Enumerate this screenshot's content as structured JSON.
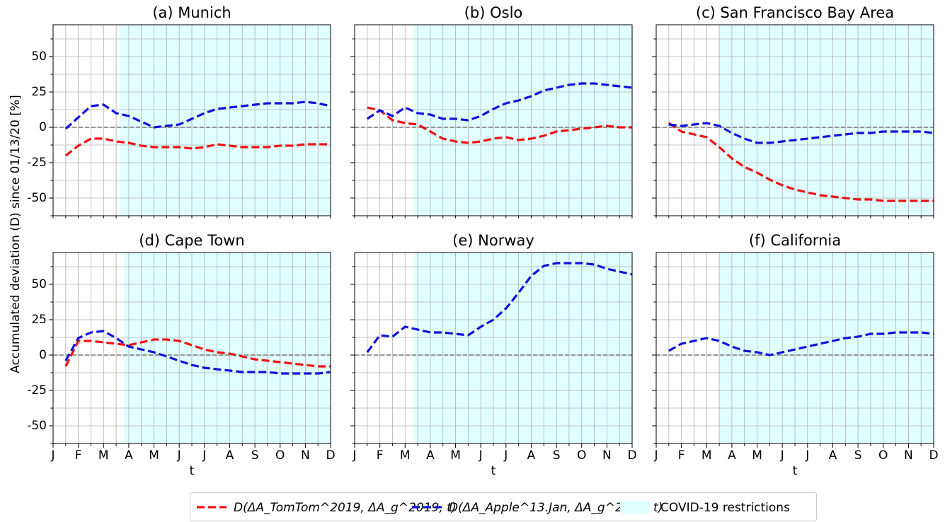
{
  "chart_data": [
    {
      "type": "line",
      "title": "(a) Munich",
      "ylabel": "Accumulated deviation (D) since 01/13/20 [%]",
      "restrictions_label": "COVID-19 restrictions",
      "shade_color": "#e0ffff",
      "shaded_from": 5.3,
      "hline": 0,
      "categories": [
        null,
        null,
        null,
        null,
        null,
        null,
        null,
        null,
        null,
        null,
        null,
        null,
        null,
        null,
        null,
        null,
        null,
        null,
        null,
        null,
        null,
        null,
        null
      ],
      "ylim": [
        -62.5,
        72.5
      ],
      "yticks": [
        -50,
        -25,
        0,
        25,
        50
      ],
      "yticks_minor": [
        -62.5,
        -37.5,
        -12.5,
        12.5,
        37.5,
        62.5
      ],
      "grid": true,
      "series": [
        {
          "name": "D(ΔA_TomTom^2019, ΔA_g^2019, t)",
          "color": "#ee1111",
          "values": [
            null,
            -20,
            -13,
            -8,
            -8,
            -10,
            -11,
            -13,
            -14,
            -14,
            -14,
            -15,
            -14,
            -12,
            -13,
            -14,
            -14,
            -14,
            -13,
            -13,
            -12,
            -12,
            -12
          ]
        },
        {
          "name": "D(ΔA_Apple^13.Jan, ΔA_g^2019, t)",
          "color": "#1111dd",
          "values": [
            null,
            -1,
            7,
            15,
            16,
            10,
            8,
            4,
            0,
            1,
            2,
            6,
            10,
            13,
            14,
            15,
            16,
            17,
            17,
            17,
            18,
            17,
            15
          ]
        }
      ]
    },
    {
      "type": "line",
      "title": "(b) Oslo",
      "shaded_from": 4.7,
      "hline": 0,
      "categories": [
        null,
        null,
        null,
        null,
        null,
        null,
        null,
        null,
        null,
        null,
        null,
        null,
        null,
        null,
        null,
        null,
        null,
        null,
        null,
        null,
        null,
        null,
        null
      ],
      "ylim": [
        -62.5,
        72.5
      ],
      "yticks": [
        -50,
        -25,
        0,
        25,
        50
      ],
      "yticks_minor": [
        -62.5,
        -37.5,
        -12.5,
        12.5,
        37.5,
        62.5
      ],
      "grid": true,
      "series": [
        {
          "color": "#ee1111",
          "values": [
            null,
            14,
            12,
            5,
            3,
            2,
            -3,
            -8,
            -10,
            -11,
            -10,
            -8,
            -7,
            -9,
            -8,
            -6,
            -3,
            -2,
            -1,
            0,
            1,
            0,
            0
          ]
        },
        {
          "color": "#1111dd",
          "values": [
            null,
            6,
            12,
            8,
            14,
            10,
            9,
            6,
            6,
            5,
            8,
            13,
            17,
            19,
            22,
            26,
            28,
            30,
            31,
            31,
            30,
            29,
            28
          ]
        }
      ]
    },
    {
      "type": "line",
      "title": "(c) San Francisco Bay Area",
      "shaded_from": 5.0,
      "hline": 0,
      "categories": [
        null,
        null,
        null,
        null,
        null,
        null,
        null,
        null,
        null,
        null,
        null,
        null,
        null,
        null,
        null,
        null,
        null,
        null,
        null,
        null,
        null,
        null,
        null
      ],
      "ylim": [
        -62.5,
        72.5
      ],
      "yticks": [
        -50,
        -25,
        0,
        25,
        50
      ],
      "yticks_minor": [
        -62.5,
        -37.5,
        -12.5,
        12.5,
        37.5,
        62.5
      ],
      "grid": true,
      "series": [
        {
          "color": "#ee1111",
          "values": [
            null,
            3,
            -3,
            -5,
            -7,
            -14,
            -22,
            -28,
            -32,
            -37,
            -41,
            -44,
            -46,
            -48,
            -49,
            -50,
            -51,
            -51,
            -52,
            -52,
            -52,
            -52,
            -52
          ]
        },
        {
          "color": "#1111dd",
          "values": [
            null,
            2,
            1,
            2,
            3,
            1,
            -4,
            -8,
            -11,
            -11,
            -10,
            -9,
            -8,
            -7,
            -6,
            -5,
            -4,
            -4,
            -3,
            -3,
            -3,
            -3,
            -4
          ]
        }
      ]
    },
    {
      "type": "line",
      "title": "(d) Cape Town",
      "xlabel": "t",
      "shaded_from": 5.6,
      "hline": 0,
      "categories": [
        "J",
        null,
        "F",
        null,
        "M",
        null,
        "A",
        null,
        "M",
        null,
        "J",
        null,
        "J",
        null,
        "A",
        null,
        "S",
        null,
        "O",
        null,
        "N",
        null,
        "D"
      ],
      "ylim": [
        -62.5,
        72.5
      ],
      "yticks": [
        -50,
        -25,
        0,
        25,
        50
      ],
      "yticks_minor": [
        -62.5,
        -37.5,
        -12.5,
        12.5,
        37.5,
        62.5
      ],
      "grid": true,
      "series": [
        {
          "color": "#ee1111",
          "values": [
            null,
            -8,
            10,
            10,
            9,
            8,
            7,
            9,
            11,
            11,
            10,
            7,
            4,
            2,
            1,
            -1,
            -3,
            -4,
            -5,
            -6,
            -7,
            -8,
            -8
          ]
        },
        {
          "color": "#1111dd",
          "values": [
            null,
            -4,
            12,
            16,
            17,
            12,
            6,
            4,
            2,
            -1,
            -4,
            -7,
            -9,
            -10,
            -11,
            -12,
            -12,
            -12,
            -13,
            -13,
            -13,
            -13,
            -12
          ]
        }
      ]
    },
    {
      "type": "line",
      "title": "(e) Norway",
      "xlabel": "t",
      "shaded_from": 4.7,
      "hline": 0,
      "categories": [
        "J",
        null,
        "F",
        null,
        "M",
        null,
        "A",
        null,
        "M",
        null,
        "J",
        null,
        "J",
        null,
        "A",
        null,
        "S",
        null,
        "O",
        null,
        "N",
        null,
        "D"
      ],
      "ylim": [
        -62.5,
        72.5
      ],
      "yticks": [
        -50,
        -25,
        0,
        25,
        50
      ],
      "yticks_minor": [
        -62.5,
        -37.5,
        -12.5,
        12.5,
        37.5,
        62.5
      ],
      "grid": true,
      "series": [
        {
          "color": "#1111dd",
          "values": [
            null,
            2,
            14,
            13,
            20,
            18,
            16,
            16,
            15,
            14,
            20,
            25,
            33,
            44,
            56,
            63,
            65,
            65,
            65,
            64,
            61,
            59,
            57
          ]
        }
      ]
    },
    {
      "type": "line",
      "title": "(f) California",
      "xlabel": "t",
      "shaded_from": 5.0,
      "hline": 0,
      "categories": [
        "J",
        null,
        "F",
        null,
        "M",
        null,
        "A",
        null,
        "M",
        null,
        "J",
        null,
        "J",
        null,
        "A",
        null,
        "S",
        null,
        "O",
        null,
        "N",
        null,
        "D"
      ],
      "ylim": [
        -62.5,
        72.5
      ],
      "yticks": [
        -50,
        -25,
        0,
        25,
        50
      ],
      "yticks_minor": [
        -62.5,
        -37.5,
        -12.5,
        12.5,
        37.5,
        62.5
      ],
      "grid": true,
      "series": [
        {
          "color": "#1111dd",
          "values": [
            null,
            3,
            8,
            10,
            12,
            10,
            6,
            3,
            2,
            0,
            2,
            4,
            6,
            8,
            10,
            12,
            13,
            15,
            15,
            16,
            16,
            16,
            15
          ]
        }
      ]
    }
  ]
}
